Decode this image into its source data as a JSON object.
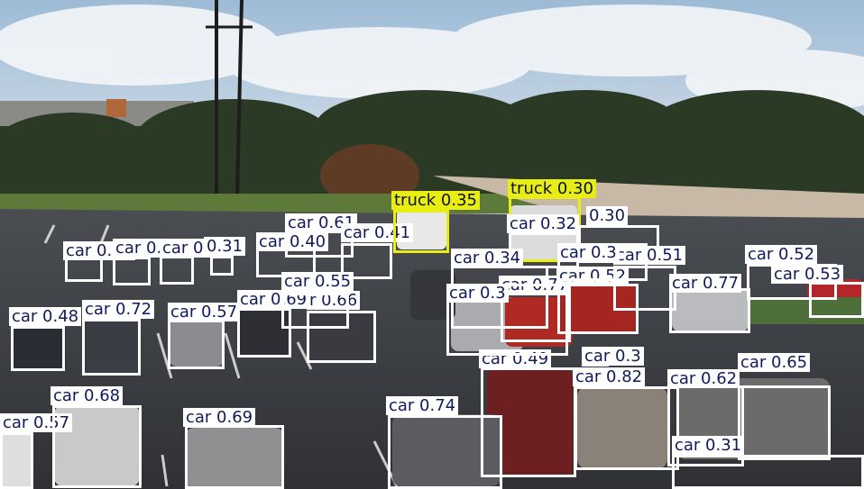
{
  "colors": {
    "car_box": "#ffffff",
    "car_text": "#101a5c",
    "truck_box": "#e8ee14",
    "truck_text": "#0b1226"
  },
  "detections": [
    {
      "cls": "car",
      "label": "car 0.57"
    },
    {
      "cls": "car",
      "label": "car 0.68"
    },
    {
      "cls": "car",
      "label": "car 0.69"
    },
    {
      "cls": "car",
      "label": "car 0.74"
    },
    {
      "cls": "car",
      "label": "car 0.49"
    },
    {
      "cls": "car",
      "label": "car 0.82"
    },
    {
      "cls": "car",
      "label": "car 0.62"
    },
    {
      "cls": "car",
      "label": "car 0.65"
    },
    {
      "cls": "car",
      "label": "car 0.31"
    },
    {
      "cls": "car",
      "label": "car 0.48"
    },
    {
      "cls": "car",
      "label": "car 0.72"
    },
    {
      "cls": "car",
      "label": "car 0.57"
    },
    {
      "cls": "car",
      "label": "car 0.69"
    },
    {
      "cls": "car",
      "label": "r 0.66"
    },
    {
      "cls": "car",
      "label": "car 0.43"
    },
    {
      "cls": "car",
      "label": "car 0.43"
    },
    {
      "cls": "car",
      "label": "car 0.43"
    },
    {
      "cls": "car",
      "label": "0.31"
    },
    {
      "cls": "car",
      "label": "car 0.61"
    },
    {
      "cls": "car",
      "label": "car 0.40"
    },
    {
      "cls": "car",
      "label": "car 0.41"
    },
    {
      "cls": "car",
      "label": "car 0.55"
    },
    {
      "cls": "truck",
      "label": "truck 0.35"
    },
    {
      "cls": "truck",
      "label": "truck 0.30"
    },
    {
      "cls": "car",
      "label": "car 0.32"
    },
    {
      "cls": "car",
      "label": "0.30"
    },
    {
      "cls": "car",
      "label": "car 0.34"
    },
    {
      "cls": "car",
      "label": "car 0.77"
    },
    {
      "cls": "car",
      "label": "car 0.52"
    },
    {
      "cls": "car",
      "label": "car 0.51"
    },
    {
      "cls": "car",
      "label": "car 0.77"
    },
    {
      "cls": "car",
      "label": "car 0.52"
    },
    {
      "cls": "car",
      "label": "car 0.53"
    },
    {
      "cls": "car",
      "label": "car 0.3"
    },
    {
      "cls": "car",
      "label": "car 0.3"
    },
    {
      "cls": "car",
      "label": "car 0.3"
    }
  ]
}
